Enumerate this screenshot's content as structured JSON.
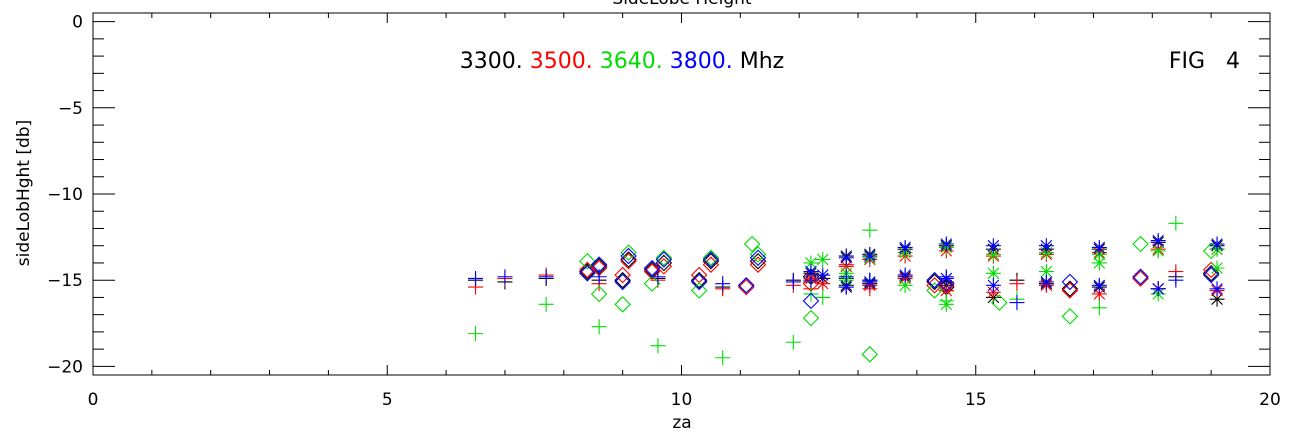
{
  "chart_data": {
    "type": "scatter",
    "title": "SideLobe Height",
    "xlabel": "za",
    "ylabel": "sideLobHght [db]",
    "xlim": [
      0,
      20
    ],
    "ylim": [
      -20.5,
      0.5
    ],
    "x_ticks": [
      "0",
      "5",
      "10",
      "15",
      "20"
    ],
    "y_ticks": [
      "0",
      "−5",
      "−10",
      "−15",
      "−20"
    ],
    "fig_label": "FIG   4",
    "legend_unit": "Mhz",
    "legend_placement": "top-center",
    "grid": false,
    "markers": {
      "diamond": "diamond",
      "plus": "plus",
      "star": "asterisk"
    },
    "series": [
      {
        "name": "3300.",
        "color": "#000000",
        "plus": [
          [
            6.5,
            -15.0
          ],
          [
            7.0,
            -15.1
          ],
          [
            7.7,
            -14.9
          ],
          [
            8.6,
            -15.0
          ],
          [
            9.6,
            -14.9
          ],
          [
            10.7,
            -15.4
          ],
          [
            11.9,
            -15.0
          ],
          [
            12.2,
            -15.1
          ],
          [
            12.8,
            -14.9
          ],
          [
            13.2,
            -15.0
          ],
          [
            14.5,
            -15.1
          ],
          [
            15.7,
            -15.0
          ],
          [
            18.4,
            -14.8
          ]
        ],
        "diamond": [
          [
            8.4,
            -14.5
          ],
          [
            8.6,
            -14.2
          ],
          [
            9.0,
            -15.0
          ],
          [
            9.1,
            -13.8
          ],
          [
            9.5,
            -14.4
          ],
          [
            9.7,
            -14.0
          ],
          [
            10.3,
            -15.0
          ],
          [
            10.5,
            -13.9
          ],
          [
            11.1,
            -15.3
          ],
          [
            11.3,
            -13.9
          ],
          [
            12.2,
            -14.8
          ],
          [
            14.3,
            -15.1
          ],
          [
            14.5,
            -15.4
          ],
          [
            16.6,
            -15.5
          ],
          [
            17.8,
            -14.9
          ],
          [
            19.0,
            -14.6
          ]
        ],
        "star": [
          [
            12.2,
            -14.6
          ],
          [
            12.4,
            -14.9
          ],
          [
            12.8,
            -15.3
          ],
          [
            12.8,
            -13.6
          ],
          [
            13.2,
            -15.2
          ],
          [
            13.2,
            -13.5
          ],
          [
            13.8,
            -14.8
          ],
          [
            13.8,
            -13.2
          ],
          [
            14.5,
            -15.3
          ],
          [
            14.5,
            -13.0
          ],
          [
            15.3,
            -16.0
          ],
          [
            15.3,
            -13.2
          ],
          [
            16.2,
            -15.2
          ],
          [
            16.2,
            -13.2
          ],
          [
            17.1,
            -15.4
          ],
          [
            17.1,
            -13.2
          ],
          [
            18.1,
            -15.5
          ],
          [
            18.1,
            -12.8
          ],
          [
            19.1,
            -16.1
          ],
          [
            19.1,
            -13.0
          ]
        ]
      },
      {
        "name": "3500.",
        "color": "#ff0000",
        "plus": [
          [
            6.5,
            -15.4
          ],
          [
            7.0,
            -14.9
          ],
          [
            7.7,
            -14.7
          ],
          [
            8.6,
            -15.2
          ],
          [
            9.6,
            -15.0
          ],
          [
            10.7,
            -15.5
          ],
          [
            11.9,
            -15.3
          ],
          [
            12.2,
            -15.5
          ],
          [
            12.8,
            -14.1
          ],
          [
            13.2,
            -15.5
          ],
          [
            14.5,
            -15.6
          ],
          [
            15.7,
            -15.2
          ],
          [
            18.4,
            -14.5
          ]
        ],
        "diamond": [
          [
            8.4,
            -14.4
          ],
          [
            8.6,
            -14.3
          ],
          [
            9.0,
            -14.7
          ],
          [
            9.1,
            -13.9
          ],
          [
            9.5,
            -14.5
          ],
          [
            9.7,
            -14.2
          ],
          [
            10.3,
            -14.7
          ],
          [
            10.5,
            -14.1
          ],
          [
            11.1,
            -15.4
          ],
          [
            11.3,
            -14.1
          ],
          [
            12.2,
            -15.2
          ],
          [
            14.3,
            -15.3
          ],
          [
            14.5,
            -15.3
          ],
          [
            16.6,
            -15.6
          ],
          [
            17.8,
            -14.9
          ],
          [
            19.0,
            -14.4
          ]
        ],
        "star": [
          [
            12.2,
            -14.9
          ],
          [
            12.4,
            -15.2
          ],
          [
            12.8,
            -15.4
          ],
          [
            12.8,
            -14.2
          ],
          [
            13.2,
            -15.3
          ],
          [
            13.2,
            -13.8
          ],
          [
            13.8,
            -14.9
          ],
          [
            13.8,
            -13.6
          ],
          [
            14.5,
            -15.6
          ],
          [
            14.5,
            -13.3
          ],
          [
            15.3,
            -15.7
          ],
          [
            15.3,
            -13.6
          ],
          [
            16.2,
            -15.3
          ],
          [
            16.2,
            -13.5
          ],
          [
            17.1,
            -15.8
          ],
          [
            17.1,
            -13.4
          ],
          [
            18.1,
            -15.5
          ],
          [
            18.1,
            -13.2
          ],
          [
            19.1,
            -15.6
          ],
          [
            19.1,
            -13.2
          ]
        ]
      },
      {
        "name": "3640.",
        "color": "#00dd00",
        "plus": [
          [
            6.5,
            -18.1
          ],
          [
            7.7,
            -16.4
          ],
          [
            8.6,
            -17.7
          ],
          [
            9.6,
            -18.8
          ],
          [
            10.7,
            -19.5
          ],
          [
            11.9,
            -18.6
          ],
          [
            12.2,
            -15.8
          ],
          [
            12.4,
            -16.0
          ],
          [
            13.2,
            -12.1
          ],
          [
            14.5,
            -16.2
          ],
          [
            15.7,
            -16.1
          ],
          [
            17.1,
            -16.6
          ],
          [
            18.4,
            -11.7
          ]
        ],
        "diamond": [
          [
            8.4,
            -13.9
          ],
          [
            8.6,
            -15.8
          ],
          [
            9.0,
            -16.4
          ],
          [
            9.1,
            -13.4
          ],
          [
            9.5,
            -15.2
          ],
          [
            9.7,
            -13.7
          ],
          [
            10.3,
            -15.6
          ],
          [
            10.5,
            -13.7
          ],
          [
            11.2,
            -12.9
          ],
          [
            11.3,
            -13.5
          ],
          [
            12.2,
            -17.2
          ],
          [
            13.2,
            -19.3
          ],
          [
            14.3,
            -15.6
          ],
          [
            15.4,
            -16.3
          ],
          [
            16.6,
            -17.1
          ],
          [
            17.8,
            -12.9
          ],
          [
            19.0,
            -13.3
          ]
        ],
        "star": [
          [
            12.2,
            -14.0
          ],
          [
            12.4,
            -13.8
          ],
          [
            12.8,
            -14.6
          ],
          [
            12.8,
            -15.0
          ],
          [
            13.2,
            -15.1
          ],
          [
            13.2,
            -13.7
          ],
          [
            13.8,
            -15.3
          ],
          [
            13.8,
            -13.4
          ],
          [
            14.5,
            -16.4
          ],
          [
            14.5,
            -13.1
          ],
          [
            15.3,
            -14.6
          ],
          [
            15.3,
            -13.5
          ],
          [
            16.2,
            -14.5
          ],
          [
            16.2,
            -13.4
          ],
          [
            17.1,
            -14.0
          ],
          [
            17.1,
            -13.5
          ],
          [
            18.1,
            -15.8
          ],
          [
            18.1,
            -13.3
          ],
          [
            19.1,
            -14.3
          ],
          [
            19.1,
            -13.2
          ]
        ]
      },
      {
        "name": "3800.",
        "color": "#0000ff",
        "plus": [
          [
            6.5,
            -14.9
          ],
          [
            7.0,
            -14.8
          ],
          [
            7.7,
            -14.8
          ],
          [
            8.6,
            -14.8
          ],
          [
            9.6,
            -14.8
          ],
          [
            10.7,
            -15.2
          ],
          [
            11.9,
            -15.1
          ],
          [
            12.2,
            -15.0
          ],
          [
            12.8,
            -14.8
          ],
          [
            13.2,
            -15.0
          ],
          [
            14.5,
            -14.8
          ],
          [
            15.7,
            -16.3
          ],
          [
            18.4,
            -15.0
          ]
        ],
        "diamond": [
          [
            8.4,
            -14.6
          ],
          [
            8.6,
            -14.1
          ],
          [
            9.0,
            -15.1
          ],
          [
            9.1,
            -13.6
          ],
          [
            9.5,
            -14.3
          ],
          [
            9.7,
            -13.8
          ],
          [
            10.3,
            -15.1
          ],
          [
            10.5,
            -13.8
          ],
          [
            11.1,
            -15.3
          ],
          [
            11.3,
            -13.7
          ],
          [
            12.2,
            -16.2
          ],
          [
            14.3,
            -15.0
          ],
          [
            14.5,
            -15.2
          ],
          [
            16.6,
            -15.1
          ],
          [
            17.8,
            -14.8
          ],
          [
            19.0,
            -14.7
          ]
        ],
        "star": [
          [
            12.2,
            -14.5
          ],
          [
            12.4,
            -14.7
          ],
          [
            12.8,
            -15.4
          ],
          [
            12.8,
            -13.7
          ],
          [
            13.2,
            -15.1
          ],
          [
            13.2,
            -13.6
          ],
          [
            13.8,
            -14.7
          ],
          [
            13.8,
            -13.1
          ],
          [
            14.5,
            -14.9
          ],
          [
            14.5,
            -12.9
          ],
          [
            15.3,
            -15.3
          ],
          [
            15.3,
            -13.0
          ],
          [
            16.2,
            -15.1
          ],
          [
            16.2,
            -13.0
          ],
          [
            17.1,
            -15.3
          ],
          [
            17.1,
            -13.1
          ],
          [
            18.1,
            -15.5
          ],
          [
            18.1,
            -12.7
          ],
          [
            19.1,
            -15.5
          ],
          [
            19.1,
            -12.9
          ]
        ]
      }
    ]
  }
}
